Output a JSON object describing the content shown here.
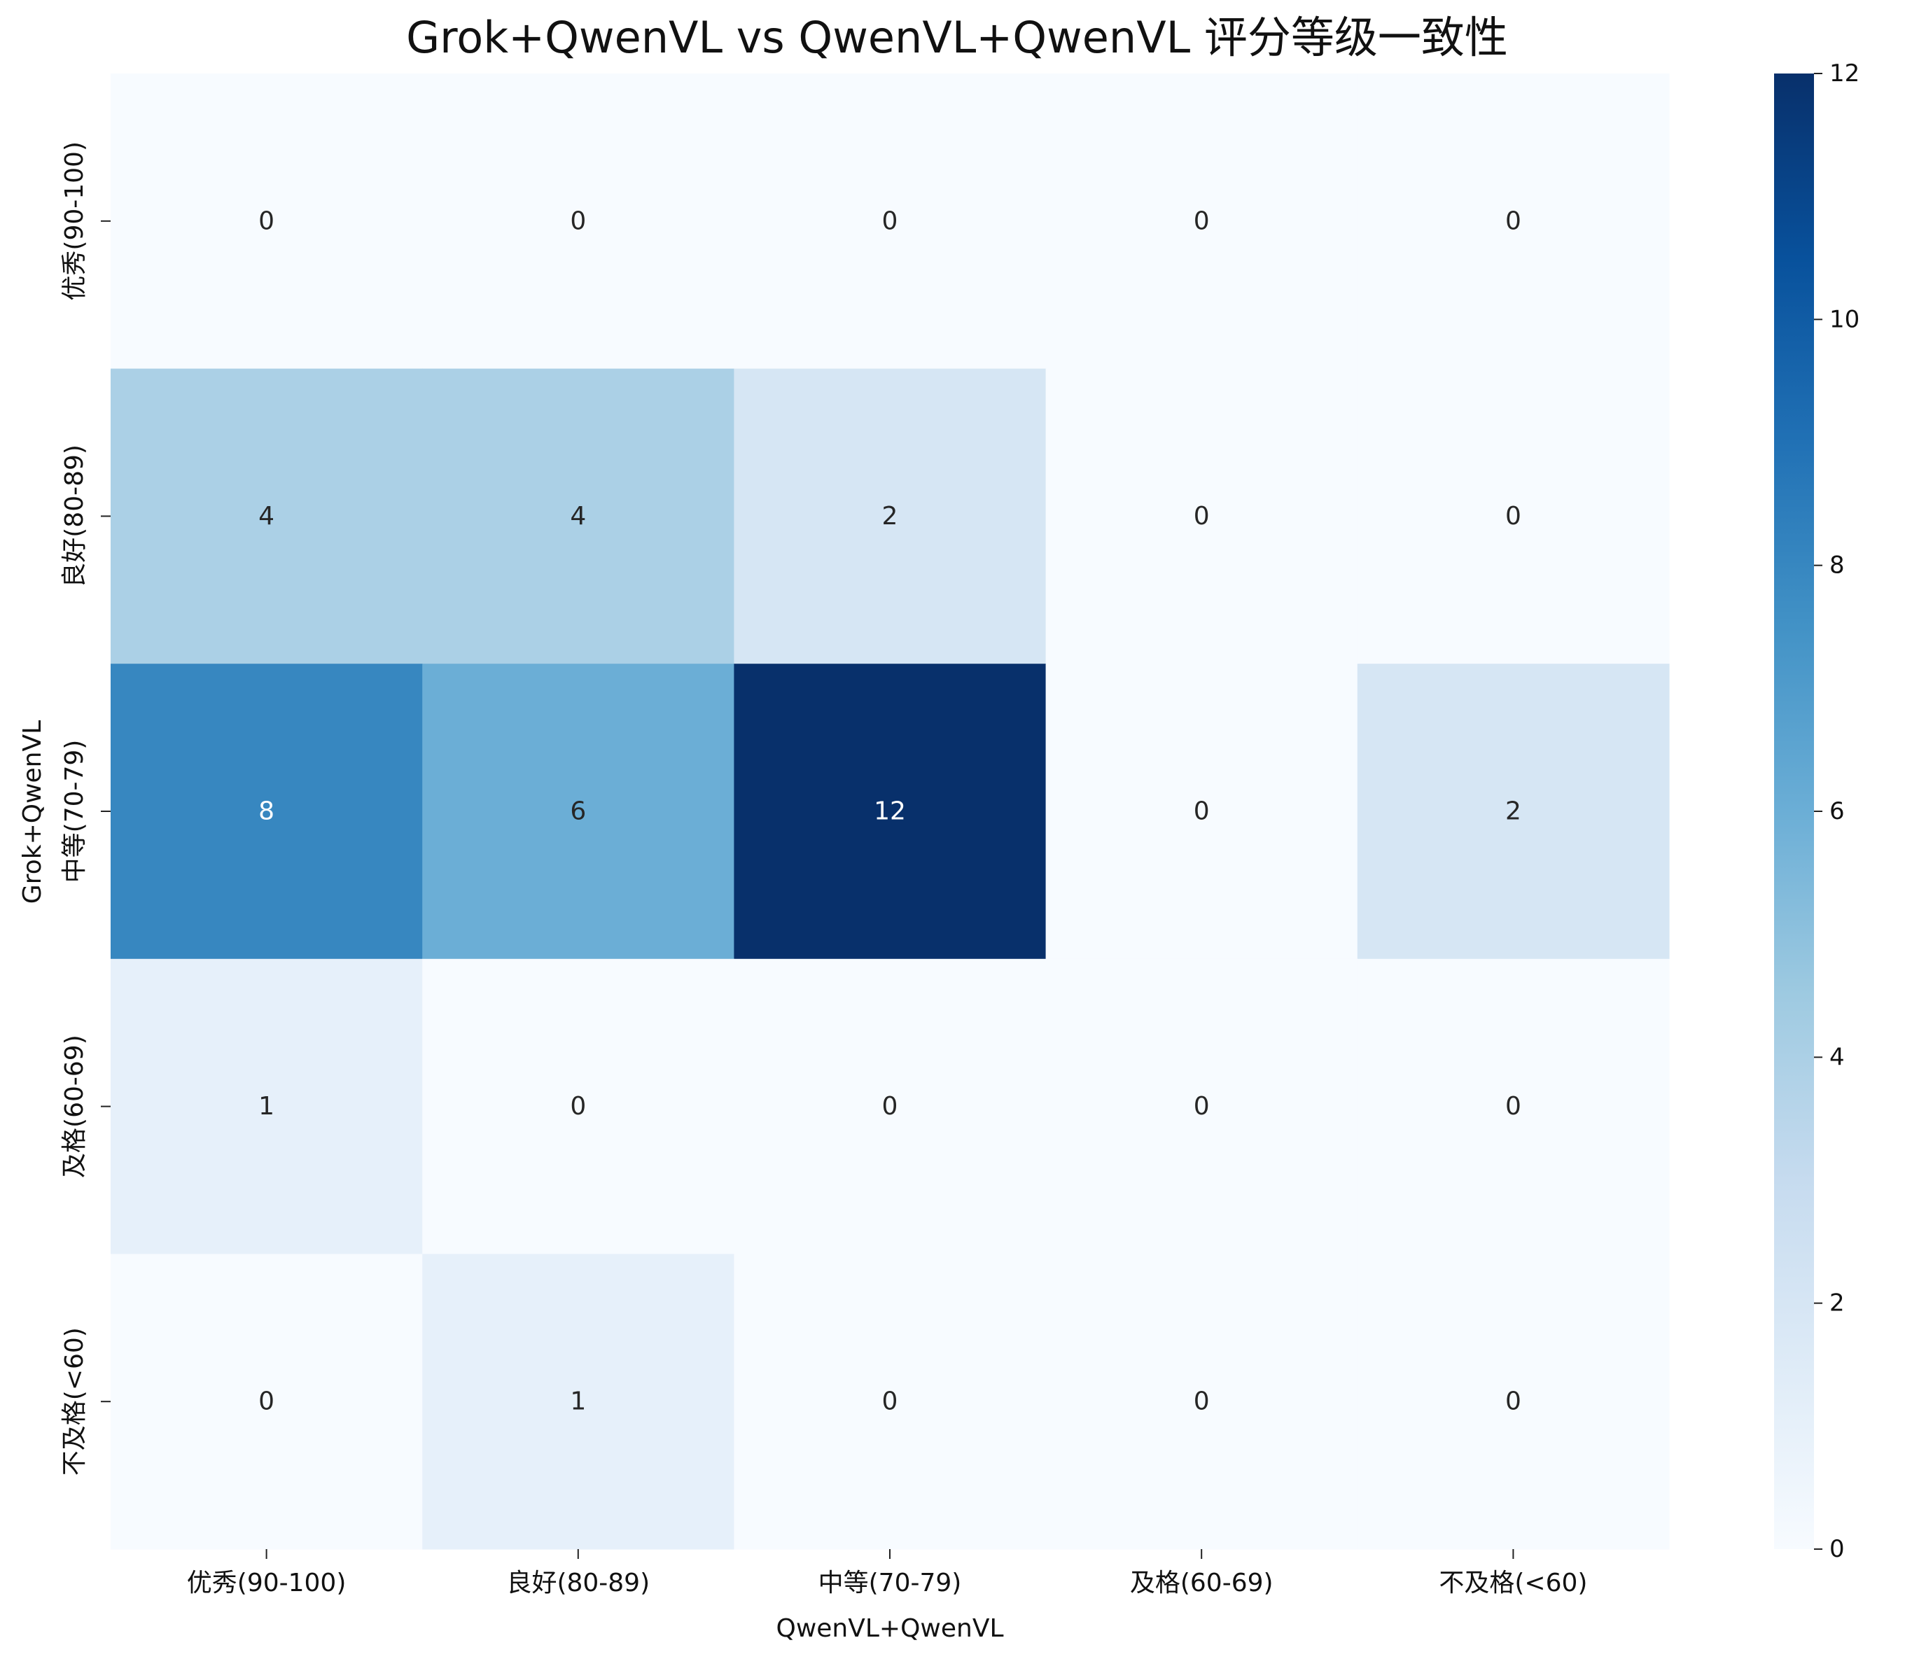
{
  "chart_data": {
    "type": "heatmap",
    "title": "Grok+QwenVL vs QwenVL+QwenVL 评分等级一致性",
    "xlabel": "QwenVL+QwenVL",
    "ylabel": "Grok+QwenVL",
    "x_categories": [
      "优秀(90-100)",
      "良好(80-89)",
      "中等(70-79)",
      "及格(60-69)",
      "不及格(<60)"
    ],
    "y_categories": [
      "优秀(90-100)",
      "良好(80-89)",
      "中等(70-79)",
      "及格(60-69)",
      "不及格(<60)"
    ],
    "values": [
      [
        0,
        0,
        0,
        0,
        0
      ],
      [
        4,
        4,
        2,
        0,
        0
      ],
      [
        8,
        6,
        12,
        0,
        2
      ],
      [
        1,
        0,
        0,
        0,
        0
      ],
      [
        0,
        1,
        0,
        0,
        0
      ]
    ],
    "colorbar": {
      "range": [
        0,
        12
      ],
      "ticks": [
        "0",
        "2",
        "4",
        "6",
        "8",
        "10",
        "12"
      ],
      "colormap": "Blues",
      "low_color": "#f7fbff",
      "high_color": "#08306b"
    },
    "grid": false,
    "annotations": true
  }
}
